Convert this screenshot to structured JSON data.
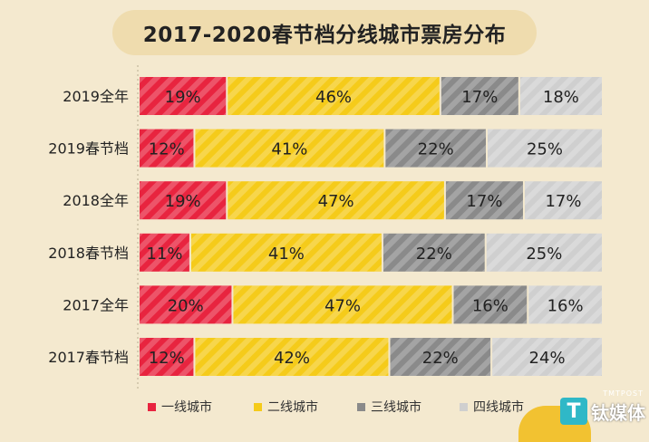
{
  "chart_data": {
    "type": "bar",
    "orientation": "horizontal",
    "stacked": true,
    "percent_stacked": true,
    "title": "2017-2020春节档分线城市票房分布",
    "categories": [
      "2019全年",
      "2019春节档",
      "2018全年",
      "2018春节档",
      "2017全年",
      "2017春节档"
    ],
    "series": [
      {
        "name": "一线城市",
        "color": "#e8243f",
        "values": [
          19,
          12,
          19,
          11,
          20,
          12
        ]
      },
      {
        "name": "二线城市",
        "color": "#f5cb1a",
        "values": [
          46,
          41,
          47,
          41,
          47,
          42
        ]
      },
      {
        "name": "三线城市",
        "color": "#8a8a8a",
        "values": [
          17,
          22,
          17,
          22,
          16,
          22
        ]
      },
      {
        "name": "四线城市",
        "color": "#cfcfcf",
        "values": [
          18,
          25,
          17,
          25,
          16,
          24
        ]
      }
    ],
    "value_suffix": "%",
    "legend_position": "bottom"
  },
  "watermark": {
    "brand": "钛媒体",
    "sub": "TMTPOST",
    "mark": "T"
  }
}
